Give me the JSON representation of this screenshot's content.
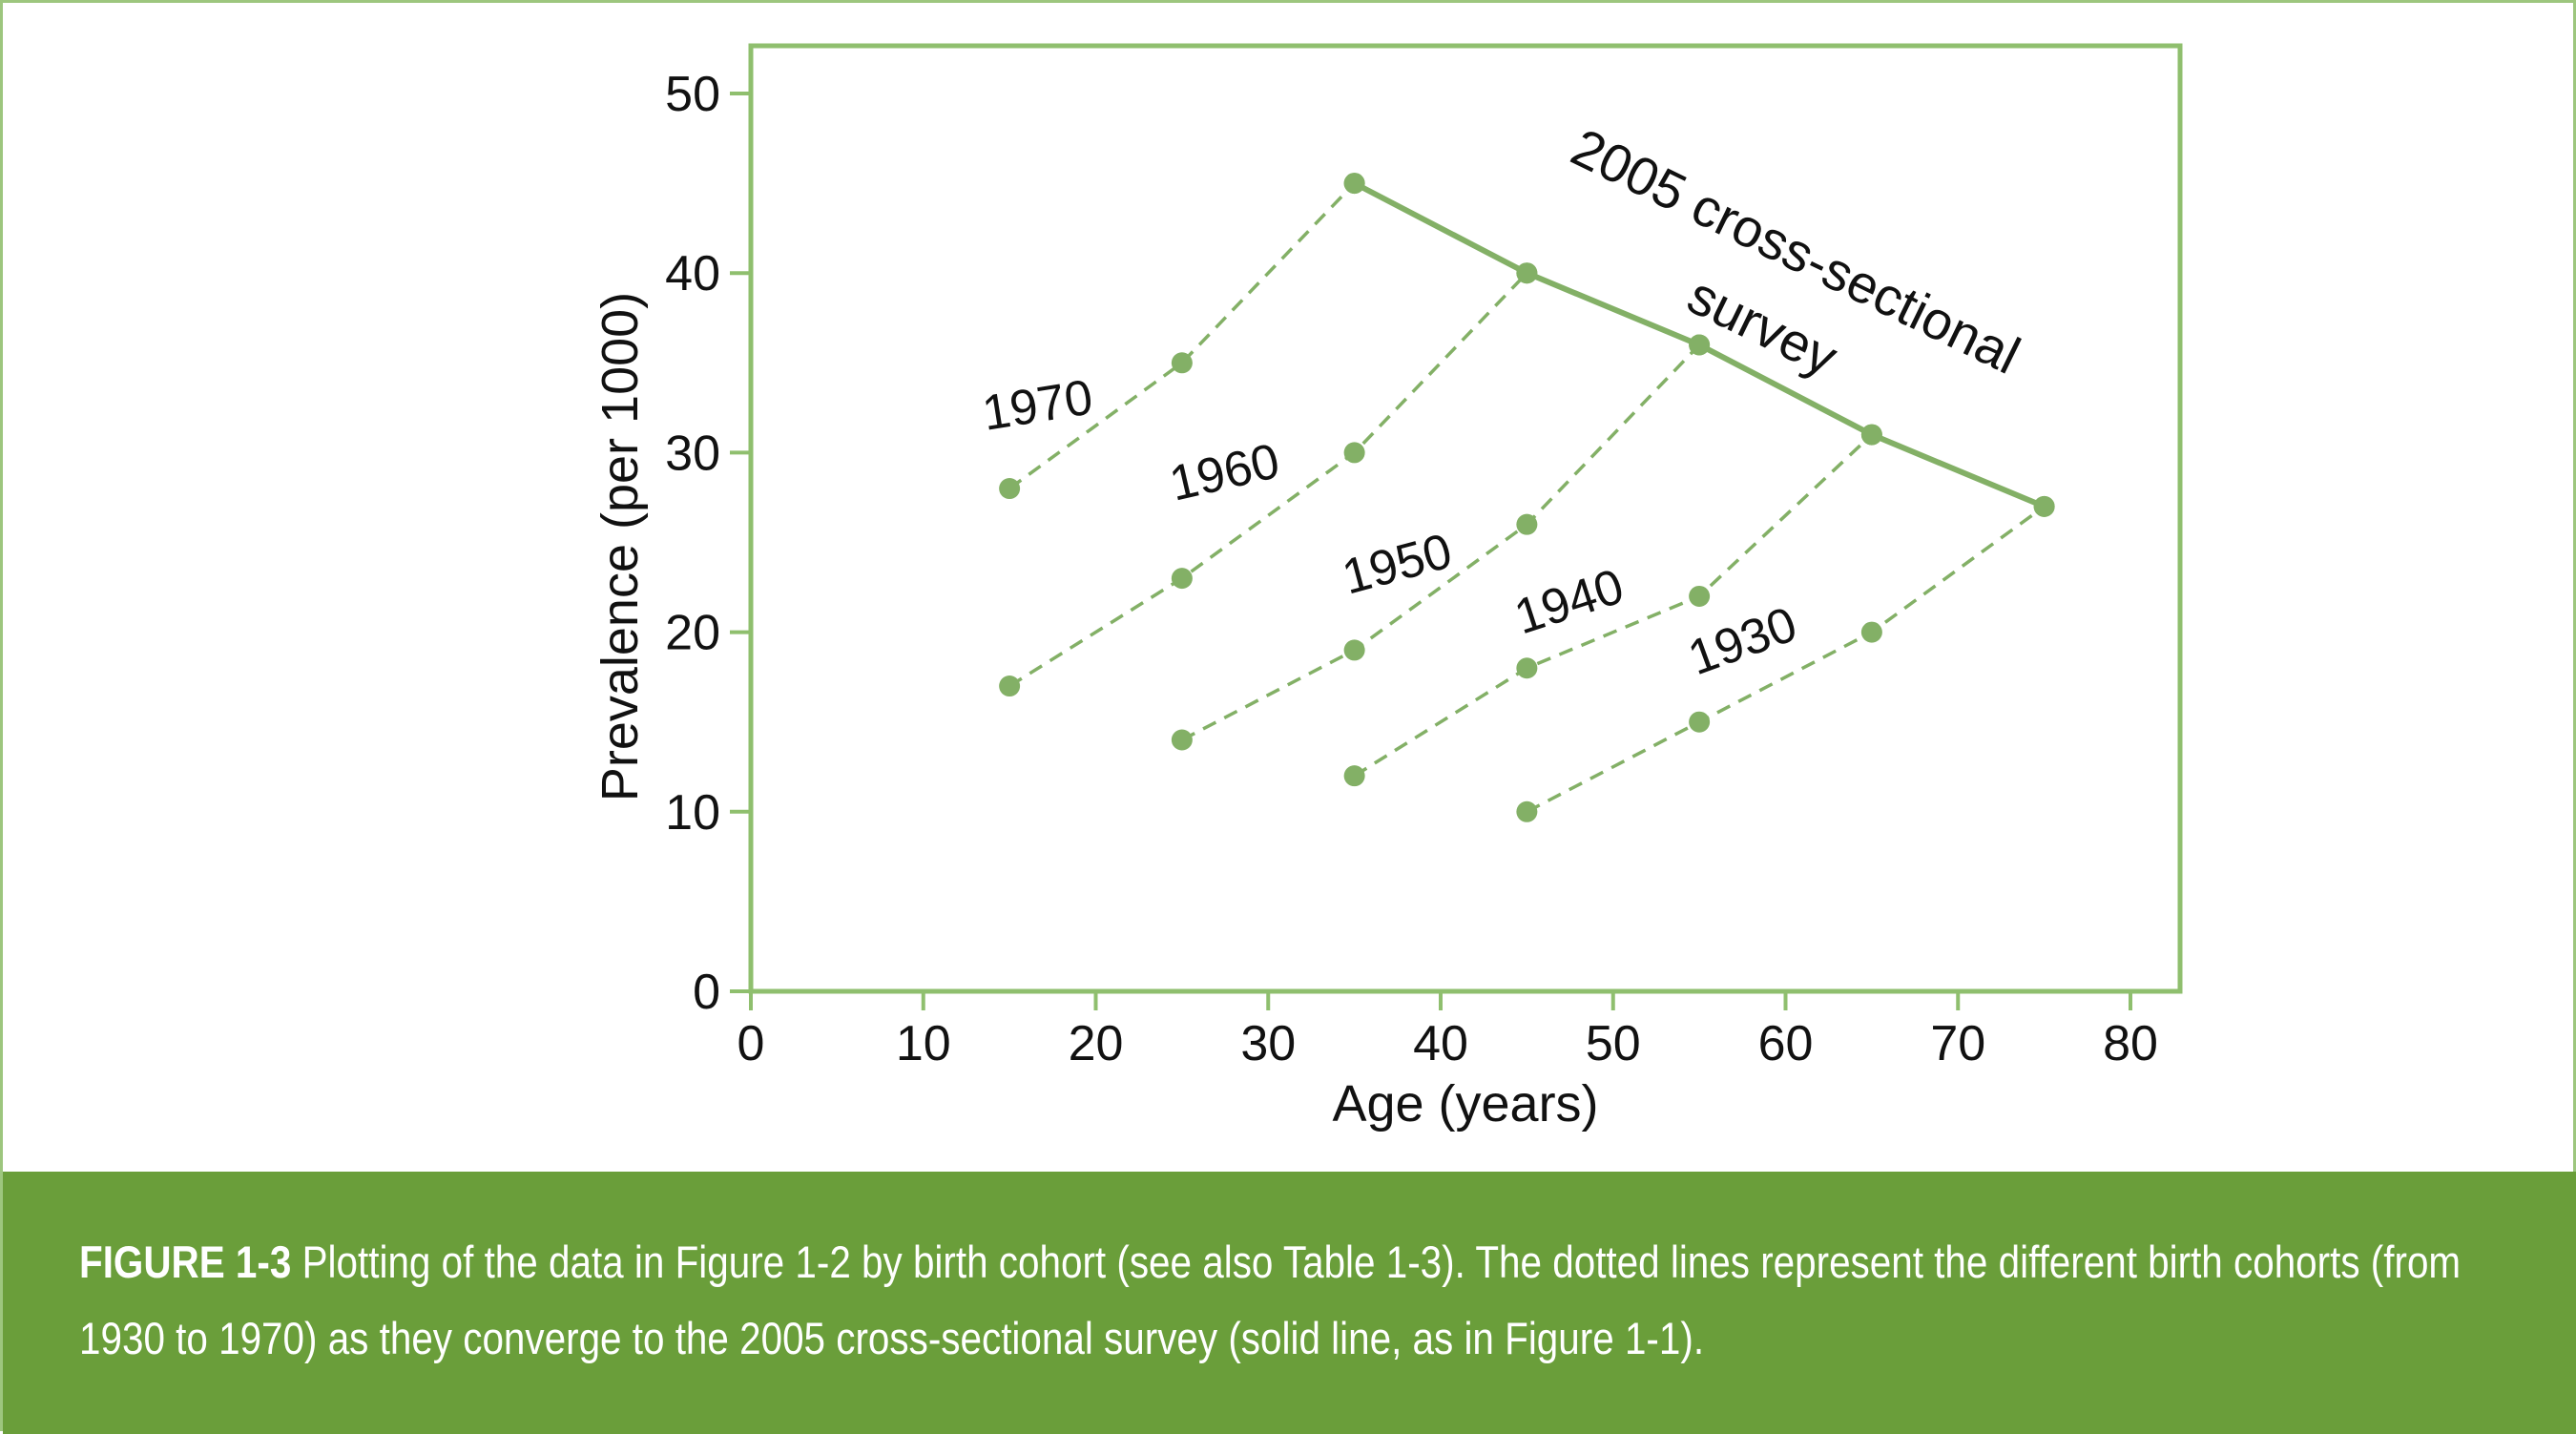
{
  "chart_data": {
    "type": "line",
    "xlabel": "Age (years)",
    "ylabel": "Prevalence (per 1000)",
    "xlim": [
      0,
      80
    ],
    "ylim": [
      0,
      50
    ],
    "xticks": [
      0,
      10,
      20,
      30,
      40,
      50,
      60,
      70,
      80
    ],
    "yticks": [
      0,
      10,
      20,
      30,
      40,
      50
    ],
    "grid": false,
    "legend": "none",
    "colors": {
      "series": "#83b066",
      "frame": "#8fbf6e"
    },
    "series": [
      {
        "name": "1970",
        "style": "dashed",
        "x": [
          15,
          25,
          35
        ],
        "y": [
          28,
          35,
          45
        ]
      },
      {
        "name": "1960",
        "style": "dashed",
        "x": [
          15,
          25,
          35,
          45
        ],
        "y": [
          17,
          23,
          30,
          40
        ]
      },
      {
        "name": "1950",
        "style": "dashed",
        "x": [
          25,
          35,
          45,
          55
        ],
        "y": [
          14,
          19,
          26,
          36
        ]
      },
      {
        "name": "1940",
        "style": "dashed",
        "x": [
          35,
          45,
          55,
          65
        ],
        "y": [
          12,
          18,
          22,
          31
        ]
      },
      {
        "name": "1930",
        "style": "dashed",
        "x": [
          45,
          55,
          65,
          75
        ],
        "y": [
          10,
          15,
          20,
          27
        ]
      },
      {
        "name": "2005 cross-sectional survey",
        "style": "solid",
        "x": [
          35,
          45,
          55,
          65,
          75
        ],
        "y": [
          45,
          40,
          36,
          31,
          27
        ]
      }
    ],
    "annotations": {
      "survey_line1": "2005 cross-sectional",
      "survey_line2": "survey"
    }
  },
  "caption": {
    "label": "FIGURE 1-3",
    "text": " Plotting of the data in Figure 1-2 by birth cohort (see also Table 1-3). The dotted lines represent the different birth cohorts (from 1930 to 1970) as they converge to the 2005 cross-sectional survey (solid line, as in Figure 1-1)."
  }
}
